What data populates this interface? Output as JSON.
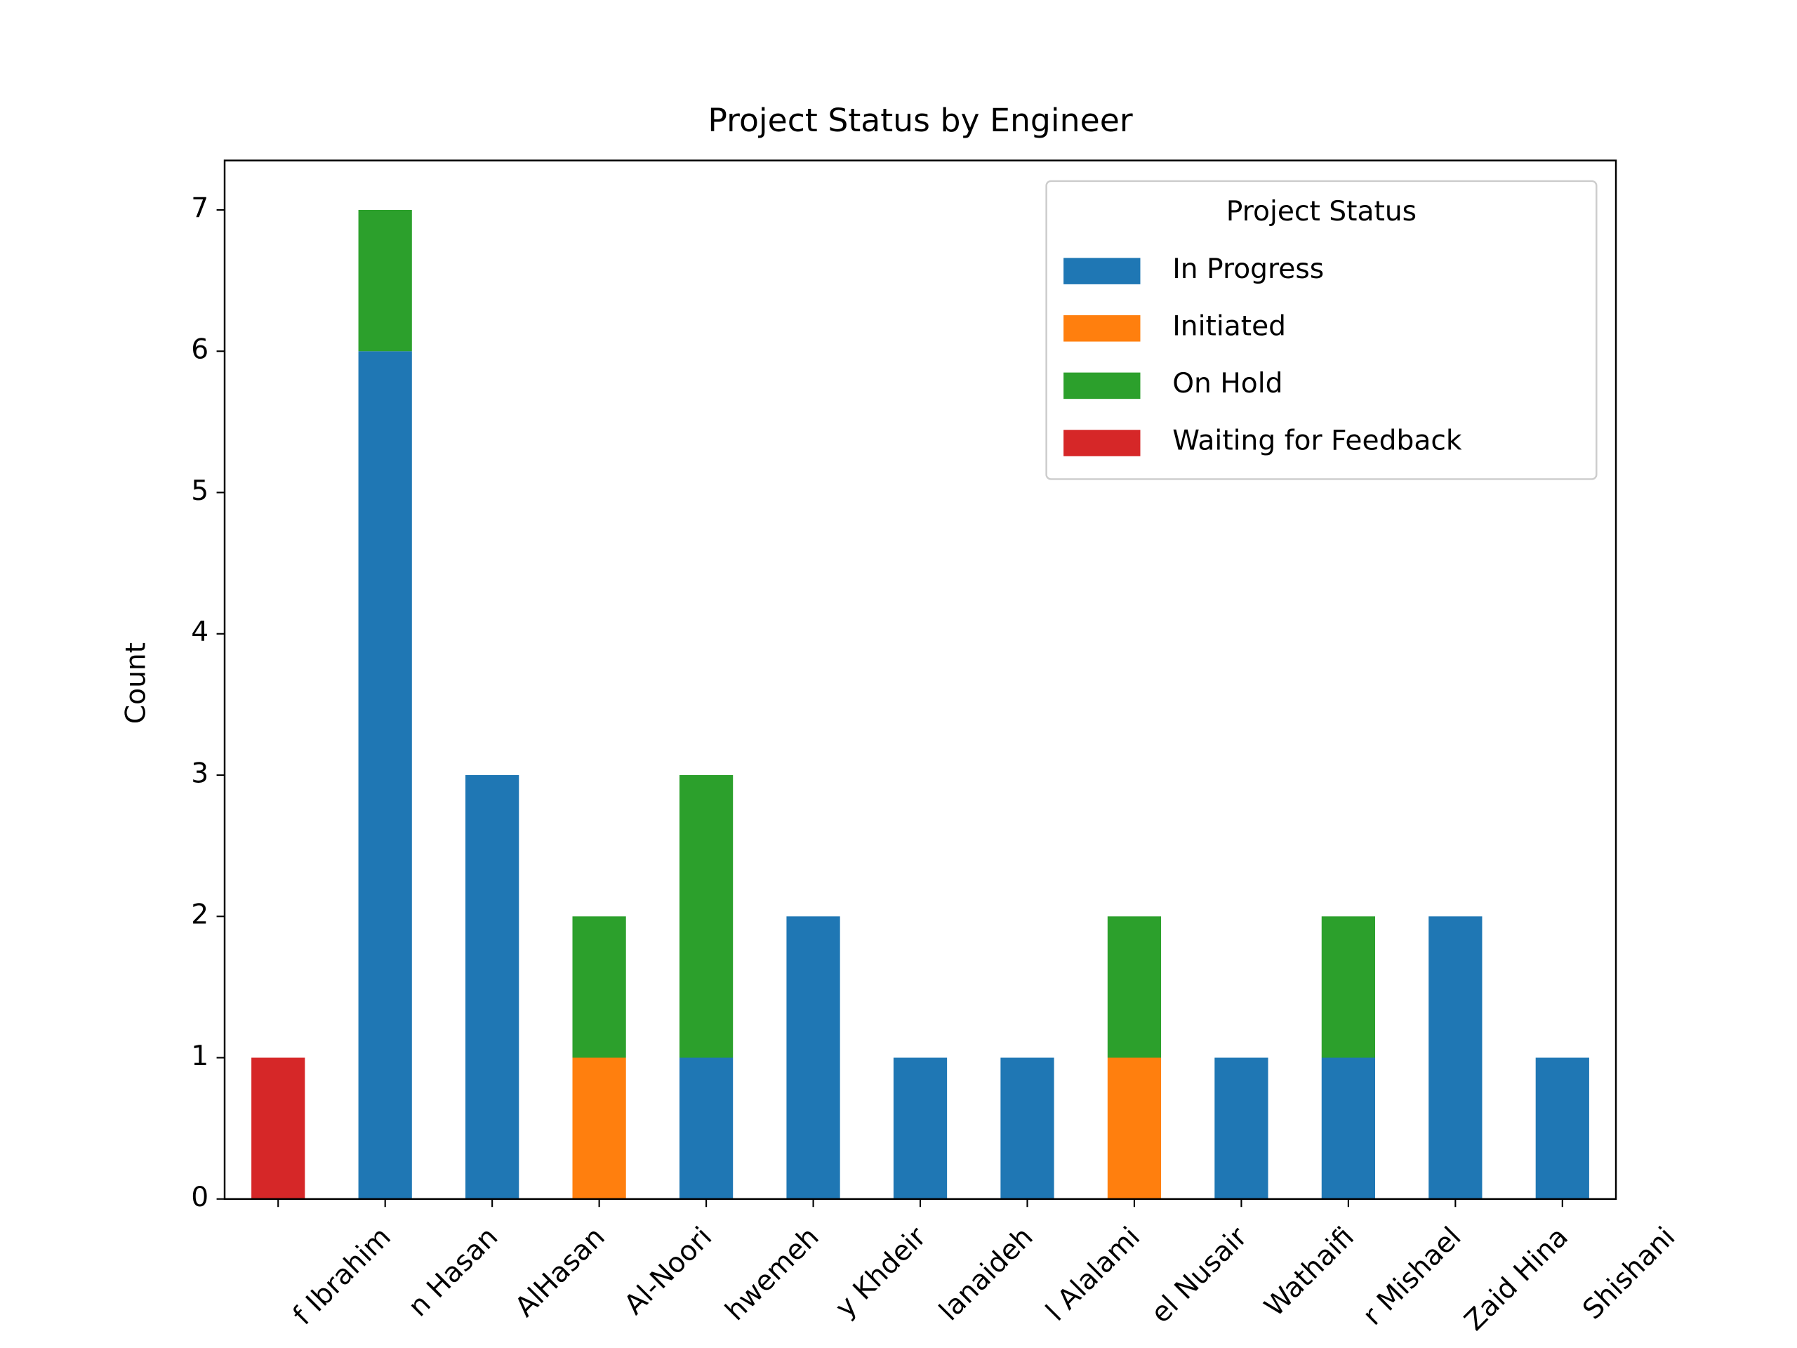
{
  "chart_data": {
    "type": "stacked-bar",
    "title": "Project Status by Engineer",
    "ylabel": "Count",
    "categories": [
      "f Ibrahim",
      "n Hasan",
      "AlHasan",
      "Al-Noori",
      "hwemeh",
      "y Khdeir",
      "lanaideh",
      "l Alalami",
      "el Nusair",
      "Wathaifi",
      "r Mishael",
      "Zaid Hina",
      "Shishani"
    ],
    "series": [
      {
        "name": "In Progress",
        "color": "#1f77b4",
        "values": [
          0,
          6,
          3,
          0,
          1,
          2,
          1,
          1,
          0,
          1,
          1,
          2,
          1
        ]
      },
      {
        "name": "Initiated",
        "color": "#ff7f0e",
        "values": [
          0,
          0,
          0,
          1,
          0,
          0,
          0,
          0,
          1,
          0,
          0,
          0,
          0
        ]
      },
      {
        "name": "On Hold",
        "color": "#2ca02c",
        "values": [
          0,
          1,
          0,
          1,
          2,
          0,
          0,
          0,
          1,
          0,
          1,
          0,
          0
        ]
      },
      {
        "name": "Waiting for Feedback",
        "color": "#d62728",
        "values": [
          1,
          0,
          0,
          0,
          0,
          0,
          0,
          0,
          0,
          0,
          0,
          0,
          0
        ]
      }
    ],
    "ylim": [
      0,
      7.35
    ],
    "yticks": [
      0,
      1,
      2,
      3,
      4,
      5,
      6,
      7
    ],
    "legend_title": "Project Status",
    "legend_position": "upper right"
  }
}
